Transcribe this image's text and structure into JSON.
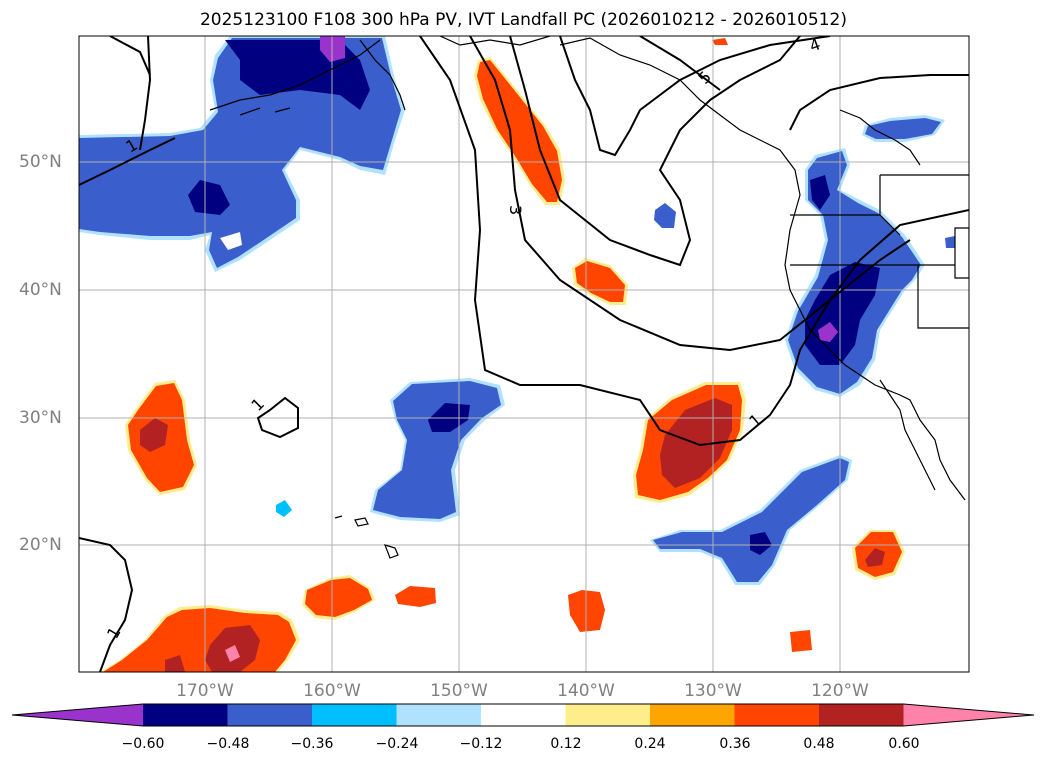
{
  "title": "2025123100 F108 300 hPa PV, IVT Landfall PC (2026010212 - 2026010512)",
  "latitude_labels": [
    "50°N",
    "40°N",
    "30°N",
    "20°N"
  ],
  "longitude_labels": [
    "170°W",
    "160°W",
    "150°W",
    "140°W",
    "130°W",
    "120°W"
  ],
  "contour_labels": [
    "1",
    "3",
    "4",
    "5",
    "1",
    "1",
    "1"
  ],
  "colorbar": {
    "tick_labels": [
      "−0.60",
      "−0.48",
      "−0.36",
      "−0.24",
      "−0.12",
      "0.12",
      "0.24",
      "0.36",
      "0.48",
      "0.60"
    ],
    "colors": [
      "#9933cc",
      "#000080",
      "#3a5fcd",
      "#00bfff",
      "#b0e2ff",
      "#ffffff",
      "#ffec8b",
      "#ffa500",
      "#ff4500",
      "#b22222",
      "#ff82ab"
    ]
  },
  "colors": {
    "pos_low": "#ffec8b",
    "pos_mid": "#ffa500",
    "pos_high": "#ff4500",
    "pos_higher": "#b22222",
    "pos_max": "#ff82ab",
    "neg_low": "#b0e2ff",
    "neg_mid": "#00bfff",
    "neg_high": "#3a5fcd",
    "neg_higher": "#000080",
    "neg_max": "#9933cc"
  }
}
